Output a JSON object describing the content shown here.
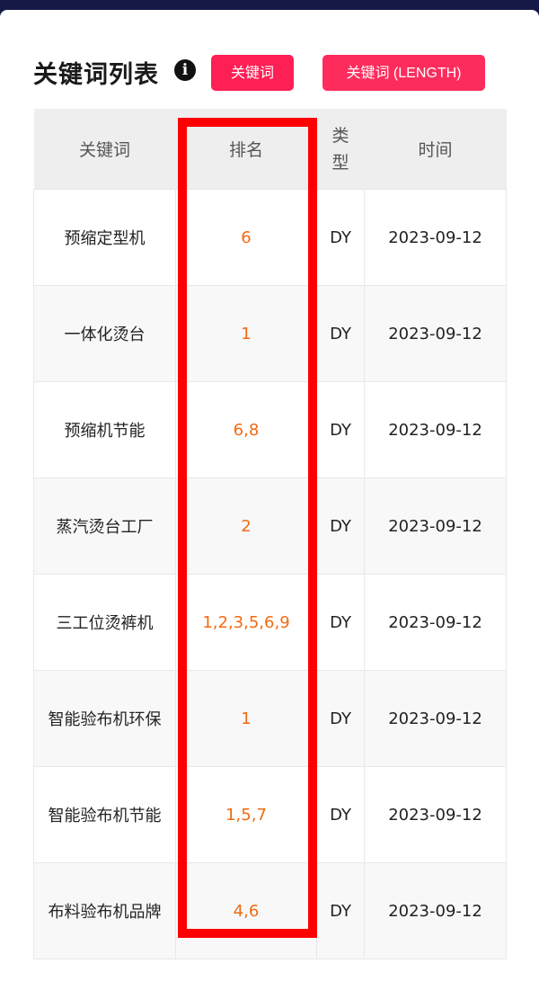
{
  "header": {
    "title": "关键词列表",
    "info_icon": "info-circle-icon",
    "btn_keyword": "关键词",
    "btn_keyword_length": "关键词 (LENGTH)",
    "accent": "#fe1f55"
  },
  "table": {
    "columns": [
      "关键词",
      "排名",
      "类型",
      "时间"
    ],
    "rows": [
      {
        "keyword": "预缩定型机",
        "rank": "6",
        "type": "DY",
        "date": "2023-09-12"
      },
      {
        "keyword": "一体化烫台",
        "rank": "1",
        "type": "DY",
        "date": "2023-09-12"
      },
      {
        "keyword": "预缩机节能",
        "rank": "6,8",
        "type": "DY",
        "date": "2023-09-12"
      },
      {
        "keyword": "蒸汽烫台工厂",
        "rank": "2",
        "type": "DY",
        "date": "2023-09-12"
      },
      {
        "keyword": "三工位烫裤机",
        "rank": "1,2,3,5,6,9",
        "type": "DY",
        "date": "2023-09-12"
      },
      {
        "keyword": "智能验布机环保",
        "rank": "1",
        "type": "DY",
        "date": "2023-09-12"
      },
      {
        "keyword": "智能验布机节能",
        "rank": "1,5,7",
        "type": "DY",
        "date": "2023-09-12"
      },
      {
        "keyword": "布料验布机品牌",
        "rank": "4,6",
        "type": "DY",
        "date": "2023-09-12"
      }
    ]
  },
  "highlight_color": "#ff0000"
}
